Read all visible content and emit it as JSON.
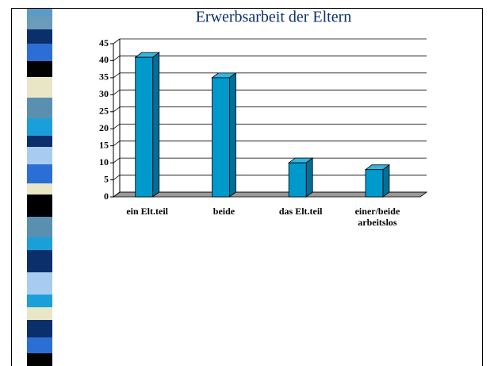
{
  "chart_data": {
    "type": "bar3d",
    "title": "Erwerbsarbeit der Eltern",
    "categories": [
      "ein Elt.teil",
      "beide",
      "das Elt.teil",
      "einer/beide arbeitslos"
    ],
    "values": [
      41,
      35,
      10,
      8
    ],
    "color": "#0099cc",
    "ylim": [
      0,
      45
    ],
    "yticks": [
      0,
      5,
      10,
      15,
      20,
      25,
      30,
      35,
      40,
      45
    ],
    "grid": true
  }
}
